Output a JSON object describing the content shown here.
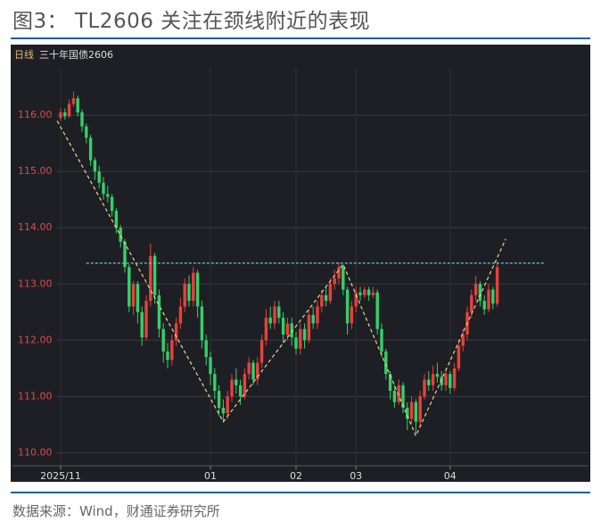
{
  "title": "图3： TL2606 关注在颈线附近的表现",
  "source": "数据来源：Wind，财通证券研究所",
  "chart_data": {
    "type": "candlestick",
    "period_label": "日线",
    "instrument": "三十年国债2606",
    "categories": [
      "2025/11",
      null,
      null,
      null,
      null,
      null,
      null,
      null,
      null,
      null,
      null,
      null,
      null,
      null,
      null,
      null,
      null,
      null,
      null,
      null,
      null,
      null,
      null,
      null,
      null,
      null,
      null,
      null,
      null,
      null,
      null,
      null,
      null,
      null,
      null,
      "01",
      null,
      null,
      null,
      null,
      null,
      null,
      null,
      null,
      null,
      null,
      null,
      null,
      null,
      null,
      null,
      null,
      null,
      null,
      null,
      "02",
      null,
      null,
      null,
      null,
      null,
      null,
      null,
      null,
      null,
      null,
      null,
      null,
      null,
      "03",
      null,
      null,
      null,
      null,
      null,
      null,
      null,
      null,
      null,
      null,
      null,
      null,
      null,
      null,
      null,
      null,
      null,
      null,
      null,
      null,
      null,
      "04",
      null,
      null,
      null,
      null,
      null,
      null,
      null,
      null,
      null,
      null,
      null
    ],
    "open": [
      115.95,
      116.05,
      115.98,
      116.2,
      116.3,
      116.05,
      115.8,
      115.6,
      115.2,
      115.0,
      114.8,
      114.6,
      114.55,
      114.3,
      114.0,
      113.75,
      113.3,
      112.6,
      113.0,
      112.5,
      112.05,
      112.7,
      113.5,
      112.8,
      112.2,
      111.8,
      111.65,
      112.0,
      112.3,
      112.6,
      113.0,
      112.7,
      113.2,
      112.6,
      112.0,
      111.7,
      111.4,
      111.1,
      110.8,
      110.7,
      111.0,
      111.3,
      111.2,
      111.0,
      111.4,
      111.6,
      111.3,
      111.6,
      112.0,
      112.4,
      112.3,
      112.6,
      112.4,
      112.1,
      112.3,
      112.05,
      111.85,
      112.2,
      112.0,
      112.45,
      112.3,
      112.6,
      112.8,
      112.7,
      113.0,
      113.1,
      113.3,
      112.9,
      112.3,
      112.6,
      112.85,
      112.8,
      112.9,
      112.8,
      112.85,
      112.2,
      111.8,
      111.4,
      111.1,
      110.9,
      111.2,
      110.8,
      110.6,
      110.9,
      110.55,
      111.0,
      111.3,
      111.2,
      111.4,
      111.35,
      111.2,
      111.4,
      111.15,
      111.5,
      111.9,
      112.1,
      112.5,
      112.8,
      113.0,
      112.7,
      112.55,
      112.9,
      112.65
    ],
    "high": [
      116.12,
      116.12,
      116.28,
      116.42,
      116.35,
      116.1,
      115.85,
      115.65,
      115.25,
      115.1,
      114.9,
      114.75,
      114.6,
      114.35,
      114.05,
      113.8,
      113.35,
      113.05,
      113.05,
      112.6,
      112.8,
      113.72,
      113.55,
      112.9,
      112.3,
      111.95,
      112.1,
      112.4,
      112.75,
      113.1,
      113.15,
      113.3,
      113.25,
      112.7,
      112.1,
      111.8,
      111.5,
      111.2,
      110.95,
      111.1,
      111.4,
      111.5,
      111.3,
      111.5,
      111.7,
      111.65,
      111.7,
      112.1,
      112.55,
      112.6,
      112.7,
      112.7,
      112.5,
      112.4,
      112.4,
      112.15,
      112.3,
      112.3,
      112.55,
      112.6,
      112.7,
      112.9,
      112.95,
      113.1,
      113.25,
      113.38,
      113.35,
      112.95,
      112.7,
      112.95,
      112.95,
      112.95,
      112.95,
      112.95,
      112.9,
      112.3,
      111.85,
      111.45,
      111.2,
      111.3,
      111.25,
      110.9,
      111.0,
      110.95,
      111.1,
      111.4,
      111.45,
      111.55,
      111.6,
      111.45,
      111.5,
      111.45,
      111.6,
      112.0,
      112.2,
      112.6,
      112.9,
      113.15,
      113.05,
      112.8,
      113.0,
      112.95,
      113.4
    ],
    "low": [
      115.9,
      115.92,
      115.95,
      116.15,
      115.98,
      115.7,
      115.5,
      115.1,
      114.85,
      114.7,
      114.5,
      114.45,
      114.2,
      113.9,
      113.65,
      113.2,
      112.5,
      112.45,
      112.3,
      111.9,
      112.0,
      112.6,
      112.65,
      112.05,
      111.6,
      111.5,
      111.55,
      111.9,
      112.2,
      112.5,
      112.6,
      112.6,
      112.4,
      111.85,
      111.55,
      111.2,
      110.95,
      110.65,
      110.55,
      110.6,
      110.9,
      111.05,
      110.85,
      110.95,
      111.3,
      111.2,
      111.2,
      111.5,
      111.9,
      112.2,
      112.2,
      112.3,
      111.95,
      112.0,
      111.9,
      111.75,
      111.75,
      111.85,
      111.95,
      112.2,
      112.2,
      112.5,
      112.6,
      112.65,
      112.9,
      113.0,
      112.8,
      112.1,
      112.2,
      112.5,
      112.7,
      112.75,
      112.7,
      112.75,
      112.1,
      111.7,
      111.3,
      110.95,
      110.8,
      110.85,
      110.7,
      110.4,
      110.5,
      110.35,
      110.45,
      110.95,
      111.1,
      111.1,
      111.25,
      111.1,
      111.1,
      111.05,
      111.1,
      111.45,
      111.8,
      112.0,
      112.4,
      112.7,
      112.6,
      112.45,
      112.5,
      112.55,
      112.6
    ],
    "close": [
      116.05,
      115.98,
      116.2,
      116.3,
      116.05,
      115.8,
      115.6,
      115.2,
      115.0,
      114.8,
      114.6,
      114.55,
      114.3,
      114.0,
      113.75,
      113.3,
      112.6,
      113.0,
      112.5,
      112.05,
      112.7,
      113.5,
      112.8,
      112.2,
      111.8,
      111.65,
      112.0,
      112.3,
      112.6,
      113.0,
      112.7,
      113.2,
      112.6,
      112.0,
      111.7,
      111.4,
      111.1,
      110.8,
      110.7,
      111.0,
      111.3,
      111.2,
      111.0,
      111.4,
      111.6,
      111.3,
      111.6,
      112.0,
      112.4,
      112.3,
      112.6,
      112.4,
      112.1,
      112.3,
      112.05,
      111.85,
      112.2,
      112.0,
      112.45,
      112.3,
      112.6,
      112.8,
      112.7,
      113.0,
      113.1,
      113.3,
      112.9,
      112.3,
      112.6,
      112.85,
      112.8,
      112.9,
      112.8,
      112.85,
      112.2,
      111.8,
      111.4,
      111.1,
      110.9,
      111.2,
      110.8,
      110.6,
      110.9,
      110.55,
      111.0,
      111.3,
      111.2,
      111.4,
      111.35,
      111.2,
      111.4,
      111.15,
      111.5,
      111.9,
      112.1,
      112.5,
      112.8,
      113.0,
      112.7,
      112.55,
      112.9,
      112.65,
      113.3
    ],
    "up_color": "#e8413c",
    "down_color": "#35d06a",
    "ylim": [
      109.8,
      116.7
    ],
    "yticks": [
      {
        "value": 110,
        "label": "110.00"
      },
      {
        "value": 111,
        "label": "111.00"
      },
      {
        "value": 112,
        "label": "112.00"
      },
      {
        "value": 113,
        "label": "113.00"
      },
      {
        "value": 114,
        "label": "114.00"
      },
      {
        "value": 115,
        "label": "115.00"
      },
      {
        "value": 116,
        "label": "116.00"
      }
    ],
    "grid": true,
    "neckline": {
      "value": 113.37,
      "x": [
        6,
        113
      ],
      "color": "#7ad3e6"
    },
    "trendline": {
      "x": [
        -0.8,
        38,
        66,
        83,
        104
      ],
      "y": [
        115.9,
        110.55,
        113.35,
        110.3,
        113.8
      ],
      "color": "#e9d48c"
    }
  }
}
